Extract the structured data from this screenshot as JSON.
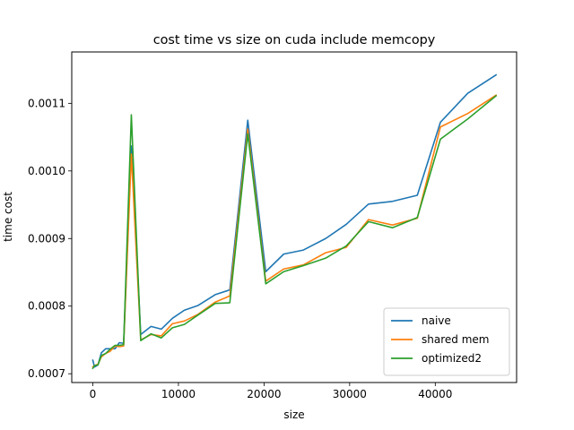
{
  "chart_data": {
    "type": "line",
    "title": "cost time vs size on cuda include memcopy",
    "xlabel": "size",
    "ylabel": "time cost",
    "xlim": [
      -2460,
      49500
    ],
    "ylim": [
      0.000687,
      0.001176
    ],
    "xticks": [
      0,
      10000,
      20000,
      30000,
      40000
    ],
    "yticks": [
      0.0007,
      0.0008,
      0.0009,
      0.001,
      0.0011
    ],
    "ytick_labels": [
      "0.0007",
      "0.0008",
      "0.0009",
      "0.0010",
      "0.0011"
    ],
    "legend": "lower-right",
    "grid": false,
    "series": [
      {
        "name": "naive",
        "color": "#1f77b4",
        "x": [
          0,
          200,
          600,
          1000,
          1500,
          2000,
          2600,
          3100,
          3600,
          4500,
          5600,
          6800,
          8000,
          9300,
          10700,
          12300,
          14300,
          16000,
          18100,
          20200,
          22300,
          24600,
          27200,
          29600,
          32200,
          35000,
          37900,
          40600,
          43800,
          47100
        ],
        "y": [
          0.00072,
          0.00071,
          0.000713,
          0.000731,
          0.000737,
          0.000737,
          0.000737,
          0.000746,
          0.000745,
          0.001037,
          0.000758,
          0.00077,
          0.000766,
          0.000782,
          0.000794,
          0.000801,
          0.000817,
          0.000824,
          0.001075,
          0.000851,
          0.000877,
          0.000883,
          0.0009,
          0.000921,
          0.000951,
          0.000955,
          0.000964,
          0.001072,
          0.001115,
          0.001142
        ]
      },
      {
        "name": "shared mem",
        "color": "#ff7f0e",
        "x": [
          0,
          200,
          600,
          1000,
          1500,
          2000,
          2600,
          3100,
          3600,
          4500,
          5600,
          6800,
          8000,
          9300,
          10700,
          12300,
          14300,
          16000,
          18100,
          20200,
          22300,
          24600,
          27200,
          29600,
          32200,
          35000,
          37900,
          40600,
          43800,
          47100
        ],
        "y": [
          0.00071,
          0.000712,
          0.000714,
          0.000725,
          0.00073,
          0.000733,
          0.000741,
          0.00074,
          0.000741,
          0.001025,
          0.00075,
          0.000758,
          0.000756,
          0.000774,
          0.000778,
          0.000788,
          0.000806,
          0.000815,
          0.001062,
          0.000837,
          0.000855,
          0.000861,
          0.000879,
          0.000887,
          0.000928,
          0.00092,
          0.00093,
          0.001065,
          0.001085,
          0.001112
        ]
      },
      {
        "name": "optimized2",
        "color": "#2ca02c",
        "x": [
          0,
          200,
          600,
          1000,
          1500,
          2000,
          2600,
          3100,
          3600,
          4500,
          5600,
          6800,
          8000,
          9300,
          10700,
          12300,
          14300,
          16000,
          18100,
          20200,
          22300,
          24600,
          27200,
          29600,
          32200,
          35000,
          37900,
          40600,
          43800,
          47100
        ],
        "y": [
          0.000708,
          0.000712,
          0.000713,
          0.000727,
          0.00073,
          0.000736,
          0.000742,
          0.000742,
          0.000743,
          0.001083,
          0.000749,
          0.000759,
          0.000753,
          0.000768,
          0.000773,
          0.000787,
          0.000804,
          0.000805,
          0.001055,
          0.000833,
          0.000851,
          0.00086,
          0.000871,
          0.000889,
          0.000925,
          0.000916,
          0.000931,
          0.001047,
          0.001077,
          0.001111
        ]
      }
    ]
  }
}
